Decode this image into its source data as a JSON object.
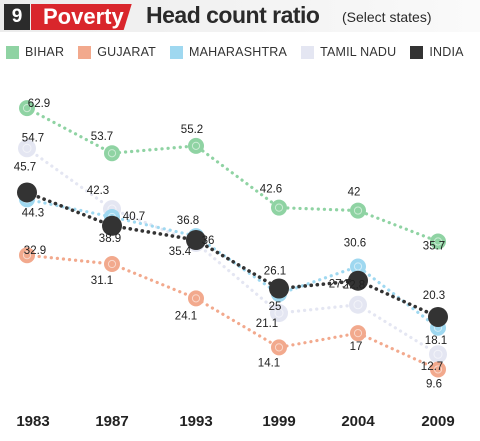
{
  "header": {
    "number": "9",
    "tag": "Poverty",
    "title": "Head count ratio",
    "subtitle": "(Select states)"
  },
  "chart_data": {
    "type": "line",
    "title": "Head count ratio",
    "subtitle": "(Select states)",
    "x": [
      "1983",
      "1987",
      "1993",
      "1999",
      "2004",
      "2009"
    ],
    "ylim": [
      5,
      67
    ],
    "grid": false,
    "legend_position": "top",
    "series": [
      {
        "name": "BIHAR",
        "color": "#8fd3a3",
        "values": [
          62.9,
          53.7,
          55.2,
          42.6,
          42,
          35.7
        ]
      },
      {
        "name": "GUJARAT",
        "color": "#f2a98d",
        "values": [
          32.9,
          31.1,
          24.1,
          14.1,
          17,
          9.6
        ]
      },
      {
        "name": "MAHARASHTRA",
        "color": "#9fd8f0",
        "values": [
          44.3,
          40.7,
          36.8,
          25,
          30.6,
          18.1
        ]
      },
      {
        "name": "TAMIL NADU",
        "color": "#e4e6f2",
        "values": [
          54.7,
          42.3,
          35.4,
          21.1,
          22.8,
          12.7
        ]
      },
      {
        "name": "INDIA",
        "color": "#333333",
        "values": [
          45.7,
          38.9,
          36,
          26.1,
          27.7,
          20.3
        ]
      }
    ],
    "value_labels": [
      [
        "62.9",
        "53.7",
        "55.2",
        "42.6",
        "42",
        "35.7"
      ],
      [
        "32.9",
        "31.1",
        "24.1",
        "14.1",
        "17",
        "9.6"
      ],
      [
        "44.3",
        "40.7",
        "36.8",
        "25",
        "30.6",
        "18.1"
      ],
      [
        "54.7",
        "42.3",
        "35.4",
        "21.1",
        "22.8",
        "12.7"
      ],
      [
        "45.7",
        "38.9",
        "36",
        "26.1",
        "27.7",
        "20.3"
      ]
    ]
  }
}
